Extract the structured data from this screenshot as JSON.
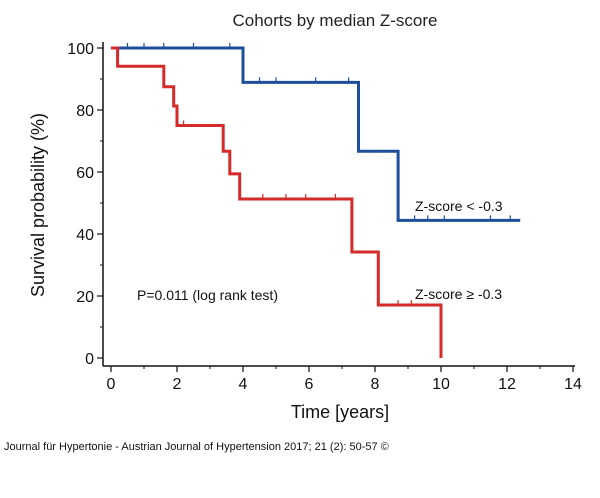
{
  "chart_data": {
    "type": "line",
    "title": "Cohorts by median Z-score",
    "xlabel": "Time [years]",
    "ylabel": "Survival probability (%)",
    "xlim": [
      0,
      14
    ],
    "ylim": [
      0,
      100
    ],
    "xticks": [
      0,
      2,
      4,
      6,
      8,
      10,
      12,
      14
    ],
    "yticks": [
      0,
      20,
      40,
      60,
      80,
      100
    ],
    "grid": false,
    "series": [
      {
        "name": "Z-score < -0.3",
        "color": "#1f4e9c",
        "steps": [
          [
            0,
            100
          ],
          [
            4.0,
            88.9
          ],
          [
            7.5,
            66.7
          ],
          [
            8.7,
            44.4
          ],
          [
            12.4,
            44.4
          ]
        ],
        "censor_x": [
          0.5,
          1.0,
          1.6,
          2.5,
          3.6,
          4.5,
          5.0,
          6.2,
          7.2,
          9.2,
          9.6,
          10.1,
          11.5,
          12.1
        ]
      },
      {
        "name": "Z-score ≥ -0.3",
        "color": "#d42a2a",
        "steps": [
          [
            0.2,
            94.1
          ],
          [
            1.6,
            87.5
          ],
          [
            1.9,
            81.3
          ],
          [
            2.0,
            75.0
          ],
          [
            3.4,
            66.7
          ],
          [
            3.6,
            59.4
          ],
          [
            3.9,
            51.3
          ],
          [
            7.3,
            34.2
          ],
          [
            8.1,
            17.1
          ],
          [
            10.0,
            0.0
          ]
        ],
        "start": 100,
        "censor_x": [
          2.2,
          4.6,
          5.3,
          5.9,
          6.8,
          8.7,
          9.1
        ]
      }
    ],
    "annotations": {
      "p_value": "P=0.011 (log rank test)",
      "label_blue": "Z-score < -0.3",
      "label_red": "Z-score ≥ -0.3"
    }
  },
  "caption": "Journal für Hypertonie - Austrian Journal of Hypertension 2017; 21 (2): 50-57 ©"
}
